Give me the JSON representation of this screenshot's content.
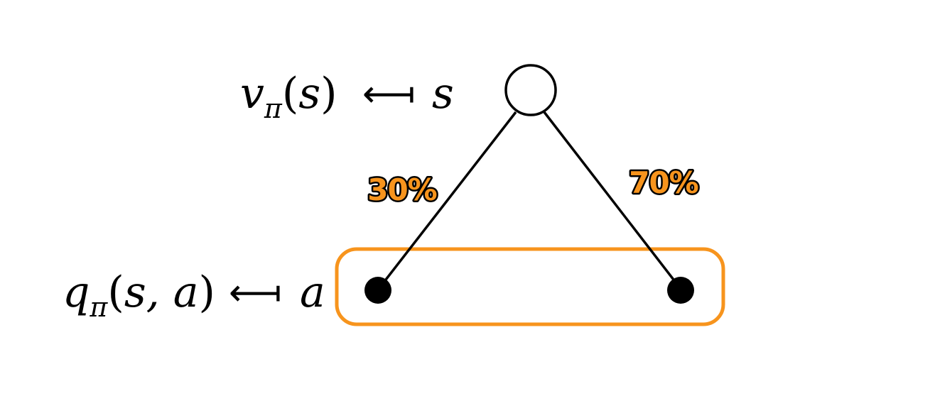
{
  "nodes": {
    "state": {
      "label_fn": "v",
      "label_sub": "π",
      "label_args": "s",
      "symbol": "s",
      "kind": "state (open circle)"
    },
    "actions": {
      "label_fn": "q",
      "label_sub": "π",
      "label_args": "s, a",
      "symbol": "a",
      "kind": "action (filled circle)"
    }
  },
  "edges": [
    {
      "to": "left-action",
      "probability": "30%"
    },
    {
      "to": "right-action",
      "probability": "70%"
    }
  ],
  "maps_to_symbol": "⟻",
  "colors": {
    "highlight": "#F7941D",
    "line": "#000000",
    "node_fill_open": "#ffffff",
    "node_fill_action": "#000000"
  }
}
